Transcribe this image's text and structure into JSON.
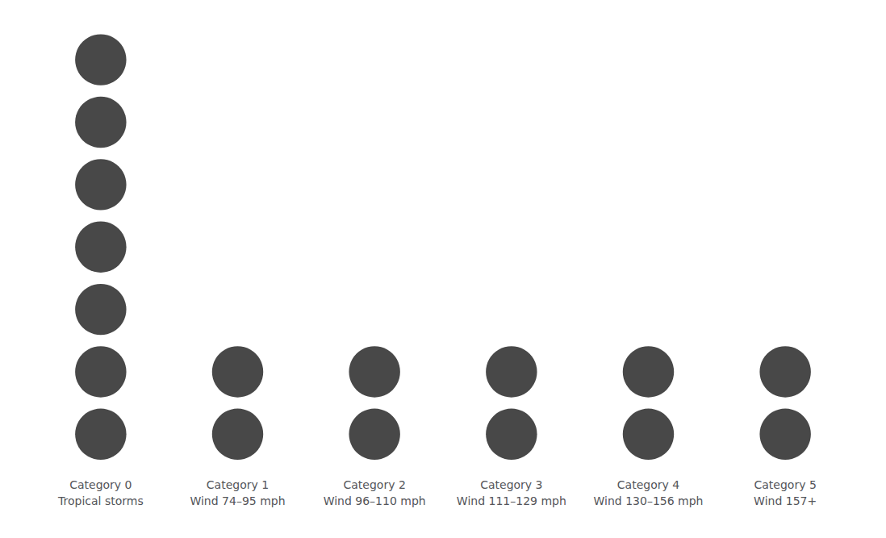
{
  "chart_data": {
    "type": "dot",
    "categories": [
      "Category 0\nTropical storms",
      "Category 1\nWind 74–95 mph",
      "Category 2\nWind 96–110 mph",
      "Category 3\nWind 111–129 mph",
      "Category 4\nWind 130–156 mph",
      "Category 5\nWind 157+"
    ],
    "values": [
      7,
      2,
      2,
      2,
      2,
      2
    ],
    "color": "#1a1a1a",
    "marker": "circle",
    "tick_labels": "x",
    "grid": false
  }
}
